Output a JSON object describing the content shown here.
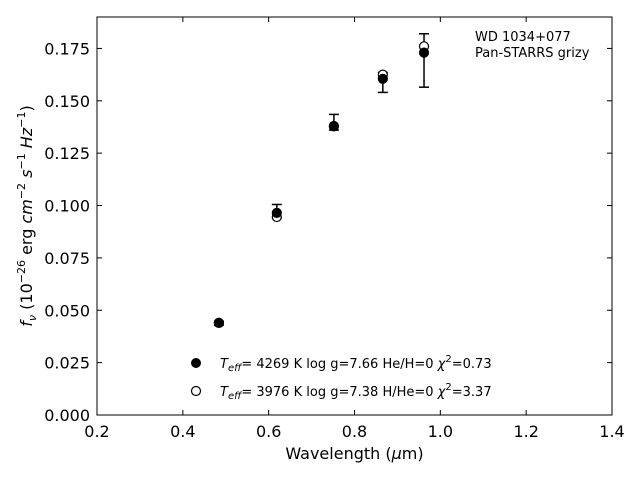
{
  "chart_data": {
    "type": "scatter",
    "xlabel": "Wavelength (μm)",
    "ylabel": "f_ν (10^-26 erg cm^-2 s^-1 Hz^-1)",
    "xlim": [
      0.2,
      1.4
    ],
    "ylim": [
      0.0,
      0.19
    ],
    "x_ticks": [
      0.2,
      0.4,
      0.6,
      0.8,
      1.0,
      1.2,
      1.4
    ],
    "x_tick_labels": [
      "0.2",
      "0.4",
      "0.6",
      "0.8",
      "1.0",
      "1.2",
      "1.4"
    ],
    "y_ticks": [
      0.0,
      0.025,
      0.05,
      0.075,
      0.1,
      0.125,
      0.15,
      0.175
    ],
    "y_tick_labels": [
      "0.000",
      "0.025",
      "0.050",
      "0.075",
      "0.100",
      "0.125",
      "0.150",
      "0.175"
    ],
    "grid": false,
    "annotation": {
      "line1": "WD 1034+077",
      "line2": "Pan-STARRS grizy"
    },
    "observed": {
      "x": [
        0.484,
        0.619,
        0.752,
        0.866,
        0.962
      ],
      "y": [
        0.0438,
        0.097,
        0.1375,
        0.161,
        0.1735
      ],
      "yerr_low": [
        0.001,
        0.003,
        0.0015,
        0.007,
        0.017
      ],
      "yerr_high": [
        0.001,
        0.0035,
        0.006,
        0.0025,
        0.0085
      ]
    },
    "series": [
      {
        "name": "Teff= 4269 K log g=7.66 He/H=0 χ2=0.73",
        "marker": "filled-circle",
        "x": [
          0.484,
          0.619,
          0.752,
          0.866,
          0.962
        ],
        "y": [
          0.044,
          0.0965,
          0.1378,
          0.1605,
          0.173
        ]
      },
      {
        "name": "Teff= 3976 K log g=7.38 H/He=0 χ2=3.37",
        "marker": "open-circle",
        "x": [
          0.484,
          0.619,
          0.752,
          0.866,
          0.962
        ],
        "y": [
          0.044,
          0.0945,
          0.138,
          0.1625,
          0.176
        ]
      }
    ],
    "legend": {
      "placement": "lower-center",
      "entries": [
        {
          "teff": "4269 K",
          "logg": "log g=7.66",
          "comp": "He/H=0",
          "chi": "=0.73"
        },
        {
          "teff": "3976 K",
          "logg": "log g=7.38",
          "comp": "H/He=0",
          "chi": "=3.37"
        }
      ]
    }
  }
}
